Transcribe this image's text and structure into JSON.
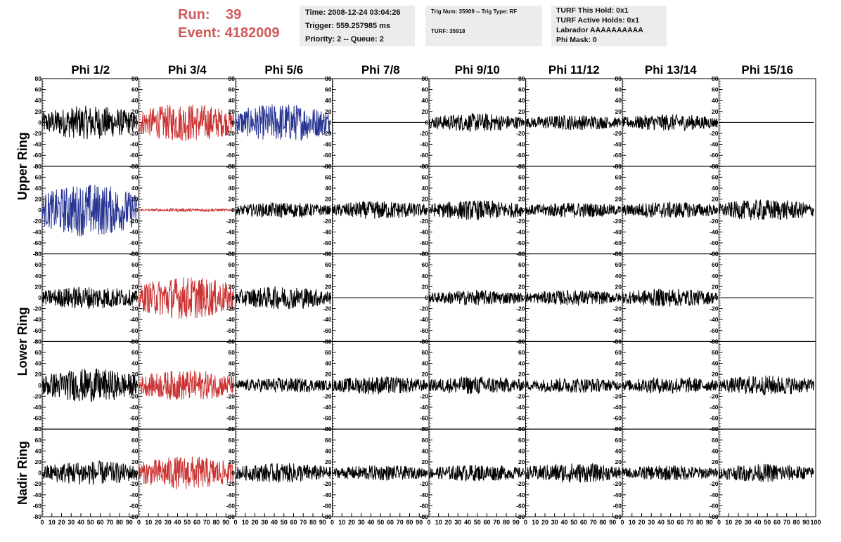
{
  "run": {
    "run_label": "Run:",
    "run_value": "39",
    "event_label": "Event:",
    "event_value": "4182009"
  },
  "info_box_1": {
    "time": "Time: 2008-12-24 03:04:26",
    "trigger": "Trigger: 559.257985 ms",
    "priority": "Priority: 2 -- Queue: 2"
  },
  "info_box_2": {
    "trig": "Trig Num: 35909 -- Trig Type: RF",
    "turf": "TURF: 35918"
  },
  "info_box_3": {
    "hold": "TURF This Hold: 0x1",
    "active": "TURF Active Holds: 0x1",
    "labrador": "Labrador AAAAAAAAAA",
    "phimask": "Phi Mask: 0"
  },
  "colors": {
    "black": "#000000",
    "red": "#cc3333",
    "blue": "#283593",
    "header_red": "#d05a5a",
    "box_bg": "#ececec"
  },
  "chart_data": {
    "type": "line",
    "columns": [
      "Phi 1/2",
      "Phi 3/4",
      "Phi 5/6",
      "Phi 7/8",
      "Phi 9/10",
      "Phi 11/12",
      "Phi 13/14",
      "Phi 15/16"
    ],
    "ring_labels": [
      "Upper Ring",
      "Lower Ring",
      "Nadir Ring"
    ],
    "x_range": [
      0,
      100
    ],
    "x_ticks": [
      0,
      10,
      20,
      30,
      40,
      50,
      60,
      70,
      80,
      90
    ],
    "y_range": [
      -80,
      80
    ],
    "y_ticks": [
      -80,
      -60,
      -40,
      -20,
      0,
      20,
      40,
      60,
      80
    ],
    "rows": [
      {
        "ring": "Upper Ring",
        "color": [
          "black",
          "red",
          "blue",
          "black",
          "black",
          "black",
          "black",
          "black"
        ],
        "amplitude": [
          22,
          25,
          25,
          0,
          12,
          10,
          11,
          0
        ]
      },
      {
        "ring": "Upper Ring",
        "color": [
          "blue",
          "red",
          "black",
          "black",
          "black",
          "black",
          "black",
          "black"
        ],
        "amplitude": [
          35,
          2,
          10,
          12,
          13,
          10,
          11,
          14
        ]
      },
      {
        "ring": "Lower Ring",
        "color": [
          "black",
          "red",
          "black",
          "black",
          "black",
          "black",
          "black",
          "black"
        ],
        "amplitude": [
          15,
          28,
          15,
          0,
          10,
          10,
          12,
          0
        ]
      },
      {
        "ring": "Lower Ring",
        "color": [
          "black",
          "red",
          "black",
          "black",
          "black",
          "black",
          "black",
          "black"
        ],
        "amplitude": [
          22,
          20,
          10,
          12,
          12,
          10,
          11,
          13
        ]
      },
      {
        "ring": "Nadir Ring",
        "color": [
          "black",
          "red",
          "black",
          "black",
          "black",
          "black",
          "black",
          "black"
        ],
        "amplitude": [
          16,
          22,
          13,
          10,
          11,
          13,
          10,
          12
        ]
      }
    ]
  }
}
